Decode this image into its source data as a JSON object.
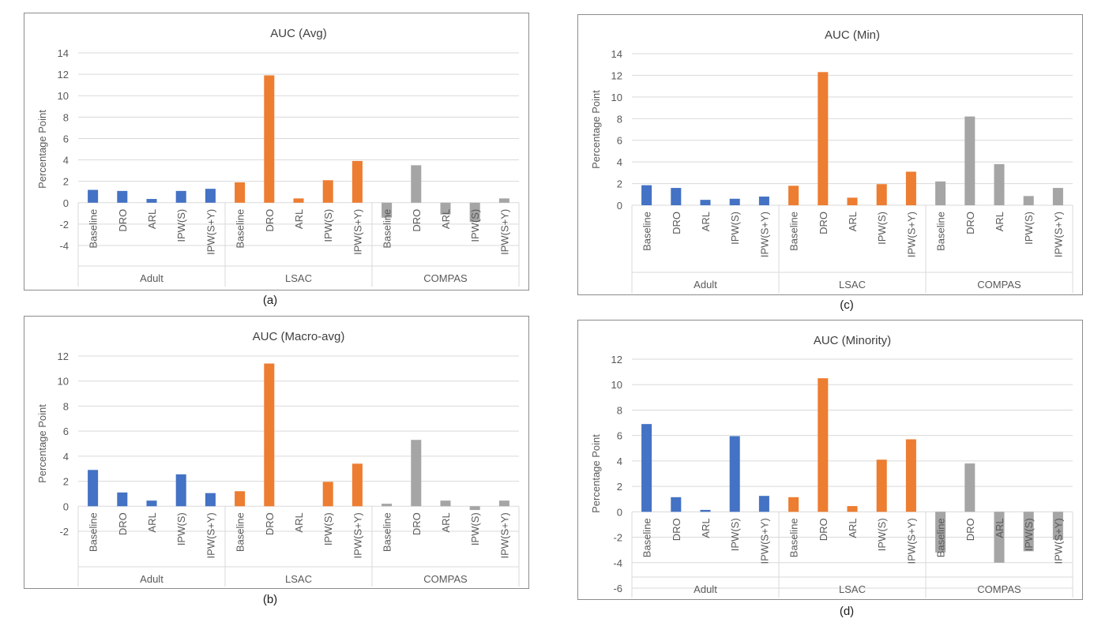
{
  "colors": {
    "Adult": "#4472c4",
    "LSAC": "#ed7d31",
    "COMPAS": "#a5a5a5",
    "grid": "#d9d9d9",
    "text": "#595959",
    "title": "#404040"
  },
  "chart_data": [
    {
      "panel": "a",
      "caption": "(a)",
      "type": "bar",
      "title": "AUC (Avg)",
      "ylabel": "Percentage Point",
      "ylim": [
        -4,
        14
      ],
      "yticks": [
        -4,
        -2,
        0,
        2,
        4,
        6,
        8,
        10,
        12,
        14
      ],
      "categories": [
        "Baseline",
        "DRO",
        "ARL",
        "IPW(S)",
        "IPW(S+Y)"
      ],
      "groups": [
        {
          "name": "Adult",
          "values": [
            1.2,
            1.1,
            0.35,
            1.1,
            1.3
          ]
        },
        {
          "name": "LSAC",
          "values": [
            1.9,
            11.9,
            0.4,
            2.1,
            3.9
          ]
        },
        {
          "name": "COMPAS",
          "values": [
            -1.4,
            3.5,
            -1.1,
            -1.8,
            0.4
          ]
        }
      ],
      "grid": true
    },
    {
      "panel": "b",
      "caption": "(b)",
      "type": "bar",
      "title": "AUC (Macro-avg)",
      "ylabel": "Percentage Point",
      "ylim": [
        -2,
        12
      ],
      "yticks": [
        -2,
        0,
        2,
        4,
        6,
        8,
        10,
        12
      ],
      "categories": [
        "Baseline",
        "DRO",
        "ARL",
        "IPW(S)",
        "IPW(S+Y)"
      ],
      "groups": [
        {
          "name": "Adult",
          "values": [
            2.9,
            1.1,
            0.45,
            2.55,
            1.05
          ]
        },
        {
          "name": "LSAC",
          "values": [
            1.2,
            11.4,
            0,
            1.95,
            3.4
          ]
        },
        {
          "name": "COMPAS",
          "values": [
            0.2,
            5.3,
            0.45,
            -0.3,
            0.45
          ]
        }
      ],
      "grid": true
    },
    {
      "panel": "c",
      "caption": "(c)",
      "type": "bar",
      "title": "AUC (Min)",
      "ylabel": "Percentage Point",
      "ylim": [
        0,
        14
      ],
      "yticks": [
        0,
        2,
        4,
        6,
        8,
        10,
        12,
        14
      ],
      "categories": [
        "Baseline",
        "DRO",
        "ARL",
        "IPW(S)",
        "IPW(S+Y)"
      ],
      "groups": [
        {
          "name": "Adult",
          "values": [
            1.85,
            1.6,
            0.5,
            0.6,
            0.8
          ]
        },
        {
          "name": "LSAC",
          "values": [
            1.8,
            12.3,
            0.7,
            1.95,
            3.1
          ]
        },
        {
          "name": "COMPAS",
          "values": [
            2.2,
            8.2,
            3.8,
            0.85,
            1.6
          ]
        }
      ],
      "grid": true
    },
    {
      "panel": "d",
      "caption": "(d)",
      "type": "bar",
      "title": "AUC (Minority)",
      "ylabel": "Percentage Point",
      "ylim": [
        -6,
        12
      ],
      "yticks": [
        -6,
        -4,
        -2,
        0,
        2,
        4,
        6,
        8,
        10,
        12
      ],
      "categories": [
        "Baseline",
        "DRO",
        "ARL",
        "IPW(S)",
        "IPW(S+Y)"
      ],
      "groups": [
        {
          "name": "Adult",
          "values": [
            6.9,
            1.15,
            0.15,
            5.95,
            1.25
          ]
        },
        {
          "name": "LSAC",
          "values": [
            1.15,
            10.5,
            0.45,
            4.1,
            5.7
          ]
        },
        {
          "name": "COMPAS",
          "values": [
            -3.2,
            3.8,
            -4.0,
            -3.1,
            -2.2
          ]
        }
      ],
      "grid": true
    }
  ]
}
